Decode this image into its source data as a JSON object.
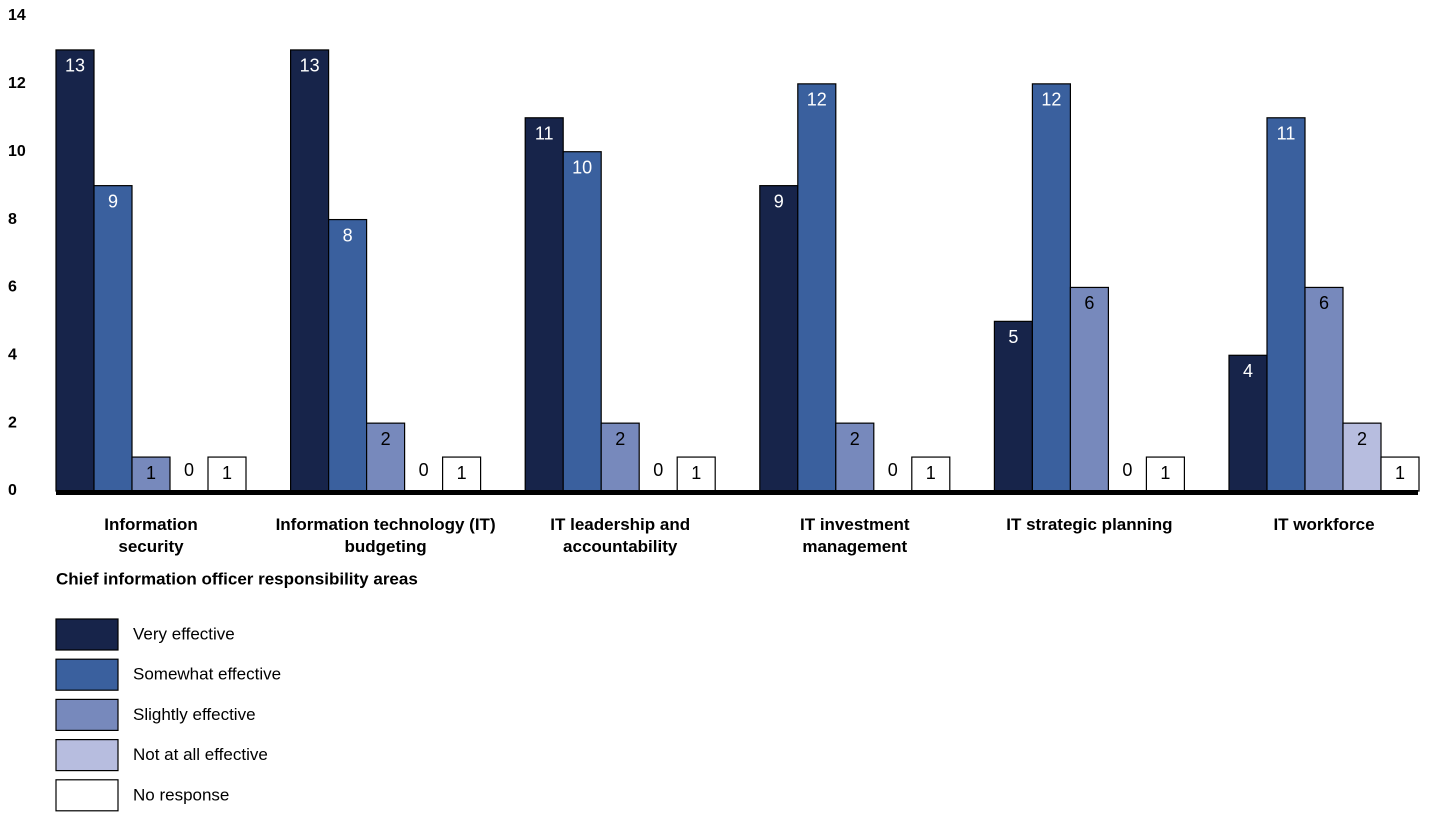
{
  "chart_data": {
    "type": "bar",
    "x_label": "Chief information officer responsibility areas",
    "categories": [
      "Information\nsecurity",
      "Information technology (IT)\nbudgeting",
      "IT leadership and\naccountability",
      "IT investment\nmanagement",
      "IT strategic planning",
      "IT workforce"
    ],
    "series": [
      {
        "name": "Very effective",
        "color": "#17244a",
        "values": [
          13,
          13,
          11,
          9,
          5,
          4
        ]
      },
      {
        "name": "Somewhat effective",
        "color": "#3a609e",
        "values": [
          9,
          8,
          10,
          12,
          12,
          11
        ]
      },
      {
        "name": "Slightly effective",
        "color": "#7789bc",
        "values": [
          1,
          2,
          2,
          2,
          6,
          6
        ]
      },
      {
        "name": "Not at all effective",
        "color": "#b7bddf",
        "values": [
          0,
          0,
          0,
          0,
          0,
          2
        ]
      },
      {
        "name": "No response",
        "color": "#ffffff",
        "values": [
          1,
          1,
          1,
          1,
          1,
          1
        ]
      }
    ],
    "ylim": [
      0,
      14
    ],
    "yticks": [
      0,
      2,
      4,
      6,
      8,
      10,
      12,
      14
    ],
    "grid": false
  }
}
